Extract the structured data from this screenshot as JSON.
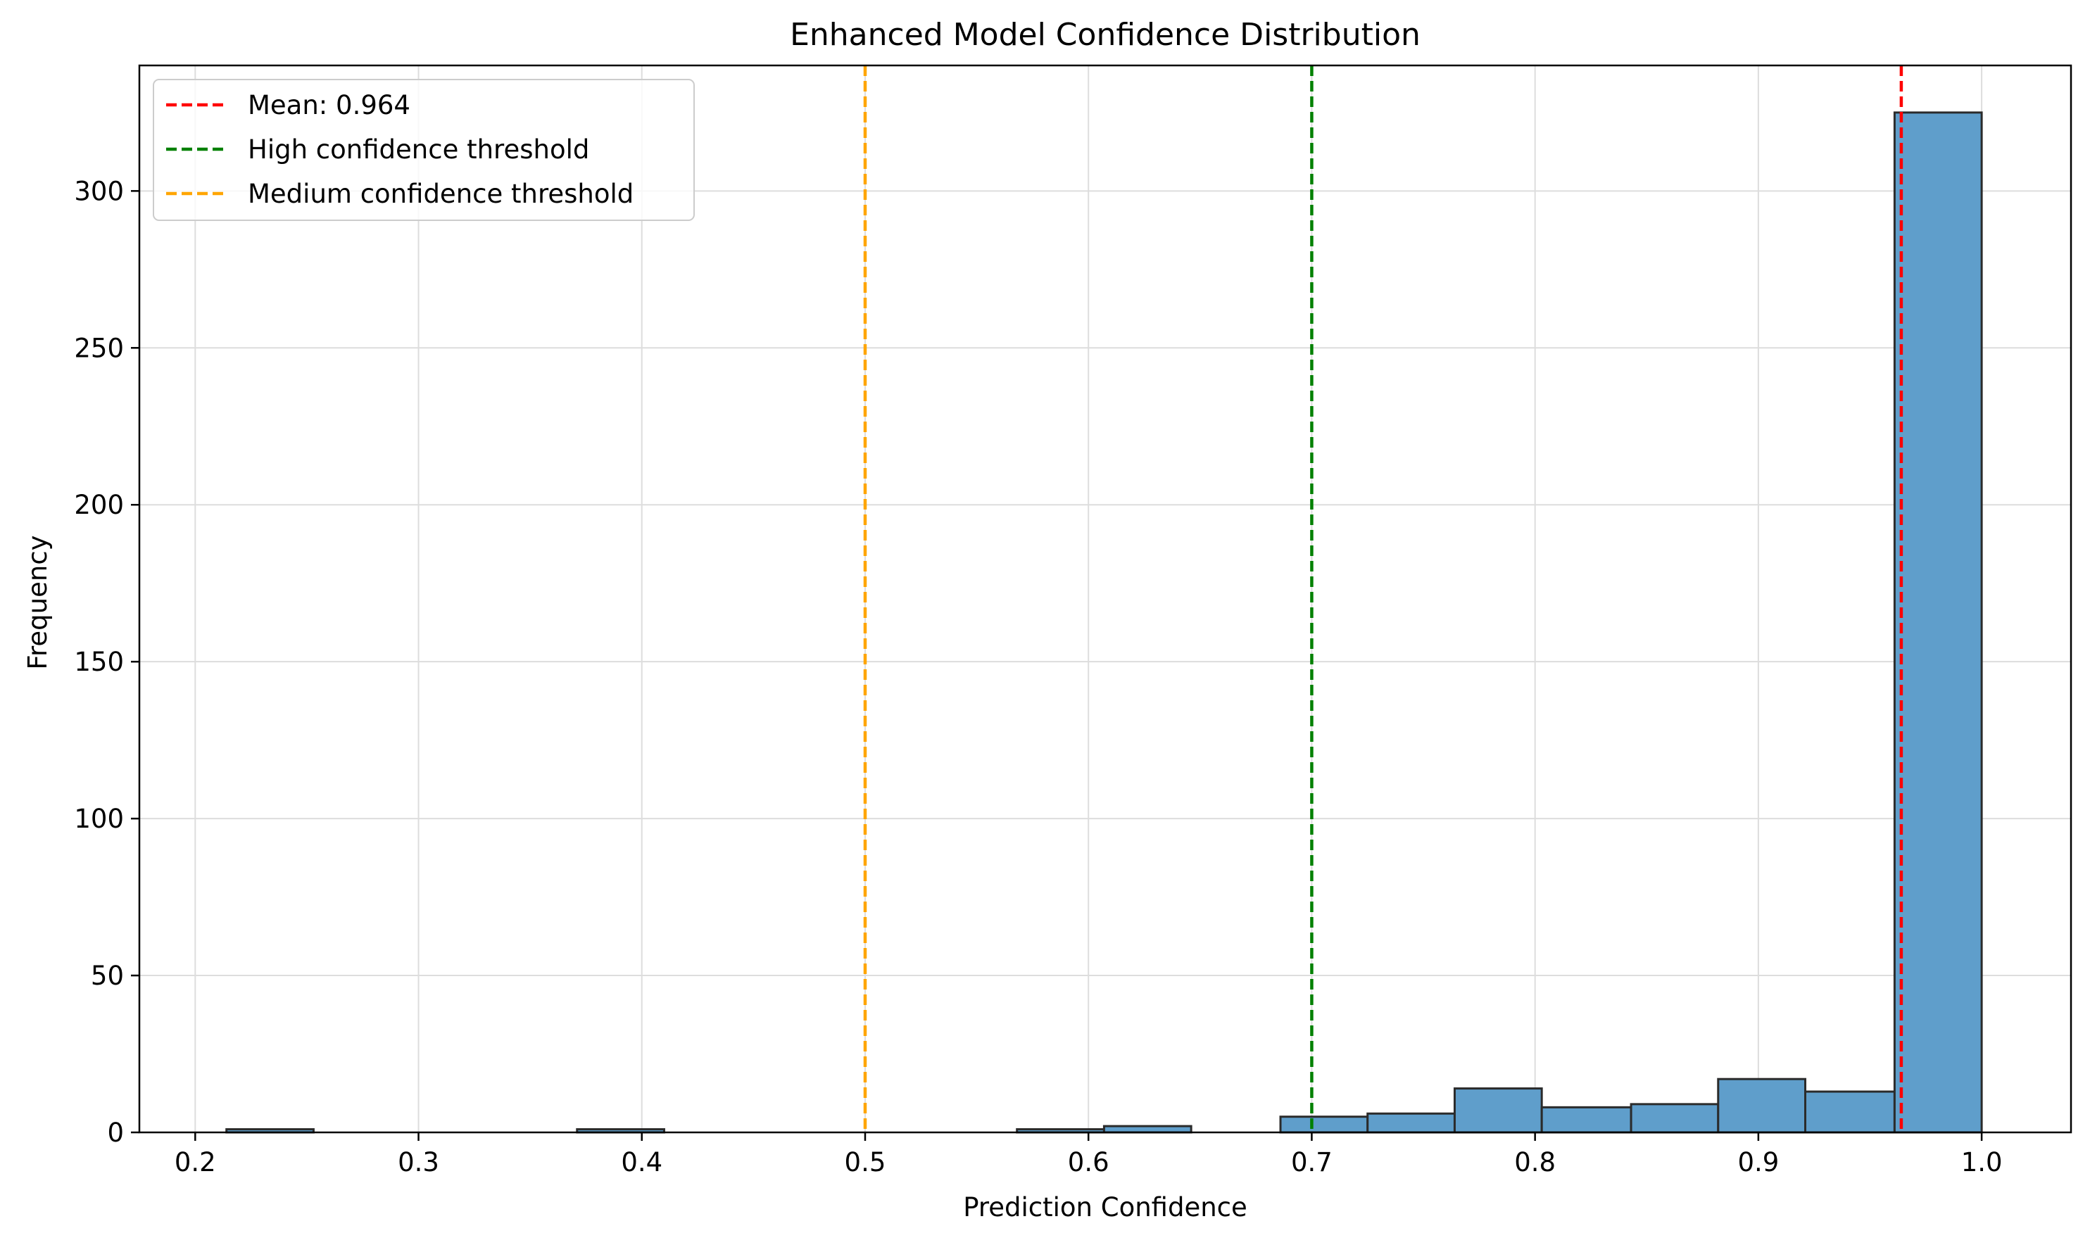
{
  "chart_data": {
    "type": "bar",
    "title": "Enhanced Model Confidence Distribution",
    "xlabel": "Prediction Confidence",
    "ylabel": "Frequency",
    "xlim": [
      0.175,
      1.04
    ],
    "ylim": [
      0,
      340
    ],
    "xticks": [
      0.2,
      0.3,
      0.4,
      0.5,
      0.6,
      0.7,
      0.8,
      0.9,
      1.0
    ],
    "xtick_labels": [
      "0.2",
      "0.3",
      "0.4",
      "0.5",
      "0.6",
      "0.7",
      "0.8",
      "0.9",
      "1.0"
    ],
    "yticks": [
      0,
      50,
      100,
      150,
      200,
      250,
      300
    ],
    "ytick_labels": [
      "0",
      "50",
      "100",
      "150",
      "200",
      "250",
      "300"
    ],
    "grid": true,
    "bar_color": "#5f9ecb",
    "bar_edge_color": "#2b2b2b",
    "bins": [
      {
        "start": 0.214,
        "end": 0.253,
        "count": 1
      },
      {
        "start": 0.253,
        "end": 0.292,
        "count": 0
      },
      {
        "start": 0.292,
        "end": 0.332,
        "count": 0
      },
      {
        "start": 0.332,
        "end": 0.371,
        "count": 0
      },
      {
        "start": 0.371,
        "end": 0.41,
        "count": 1
      },
      {
        "start": 0.41,
        "end": 0.45,
        "count": 0
      },
      {
        "start": 0.45,
        "end": 0.489,
        "count": 0
      },
      {
        "start": 0.489,
        "end": 0.528,
        "count": 0
      },
      {
        "start": 0.528,
        "end": 0.568,
        "count": 0
      },
      {
        "start": 0.568,
        "end": 0.607,
        "count": 1
      },
      {
        "start": 0.607,
        "end": 0.646,
        "count": 2
      },
      {
        "start": 0.646,
        "end": 0.686,
        "count": 0
      },
      {
        "start": 0.686,
        "end": 0.725,
        "count": 5
      },
      {
        "start": 0.725,
        "end": 0.764,
        "count": 6
      },
      {
        "start": 0.764,
        "end": 0.803,
        "count": 14
      },
      {
        "start": 0.803,
        "end": 0.843,
        "count": 8
      },
      {
        "start": 0.843,
        "end": 0.882,
        "count": 9
      },
      {
        "start": 0.882,
        "end": 0.921,
        "count": 17
      },
      {
        "start": 0.921,
        "end": 0.961,
        "count": 13
      },
      {
        "start": 0.961,
        "end": 1.0,
        "count": 325
      }
    ],
    "vlines": [
      {
        "x": 0.964,
        "color": "#ff0000",
        "label": "Mean: 0.964"
      },
      {
        "x": 0.7,
        "color": "#008000",
        "label": "High confidence threshold"
      },
      {
        "x": 0.5,
        "color": "#ffa500",
        "label": "Medium confidence threshold"
      }
    ],
    "legend_position": "upper-left"
  }
}
